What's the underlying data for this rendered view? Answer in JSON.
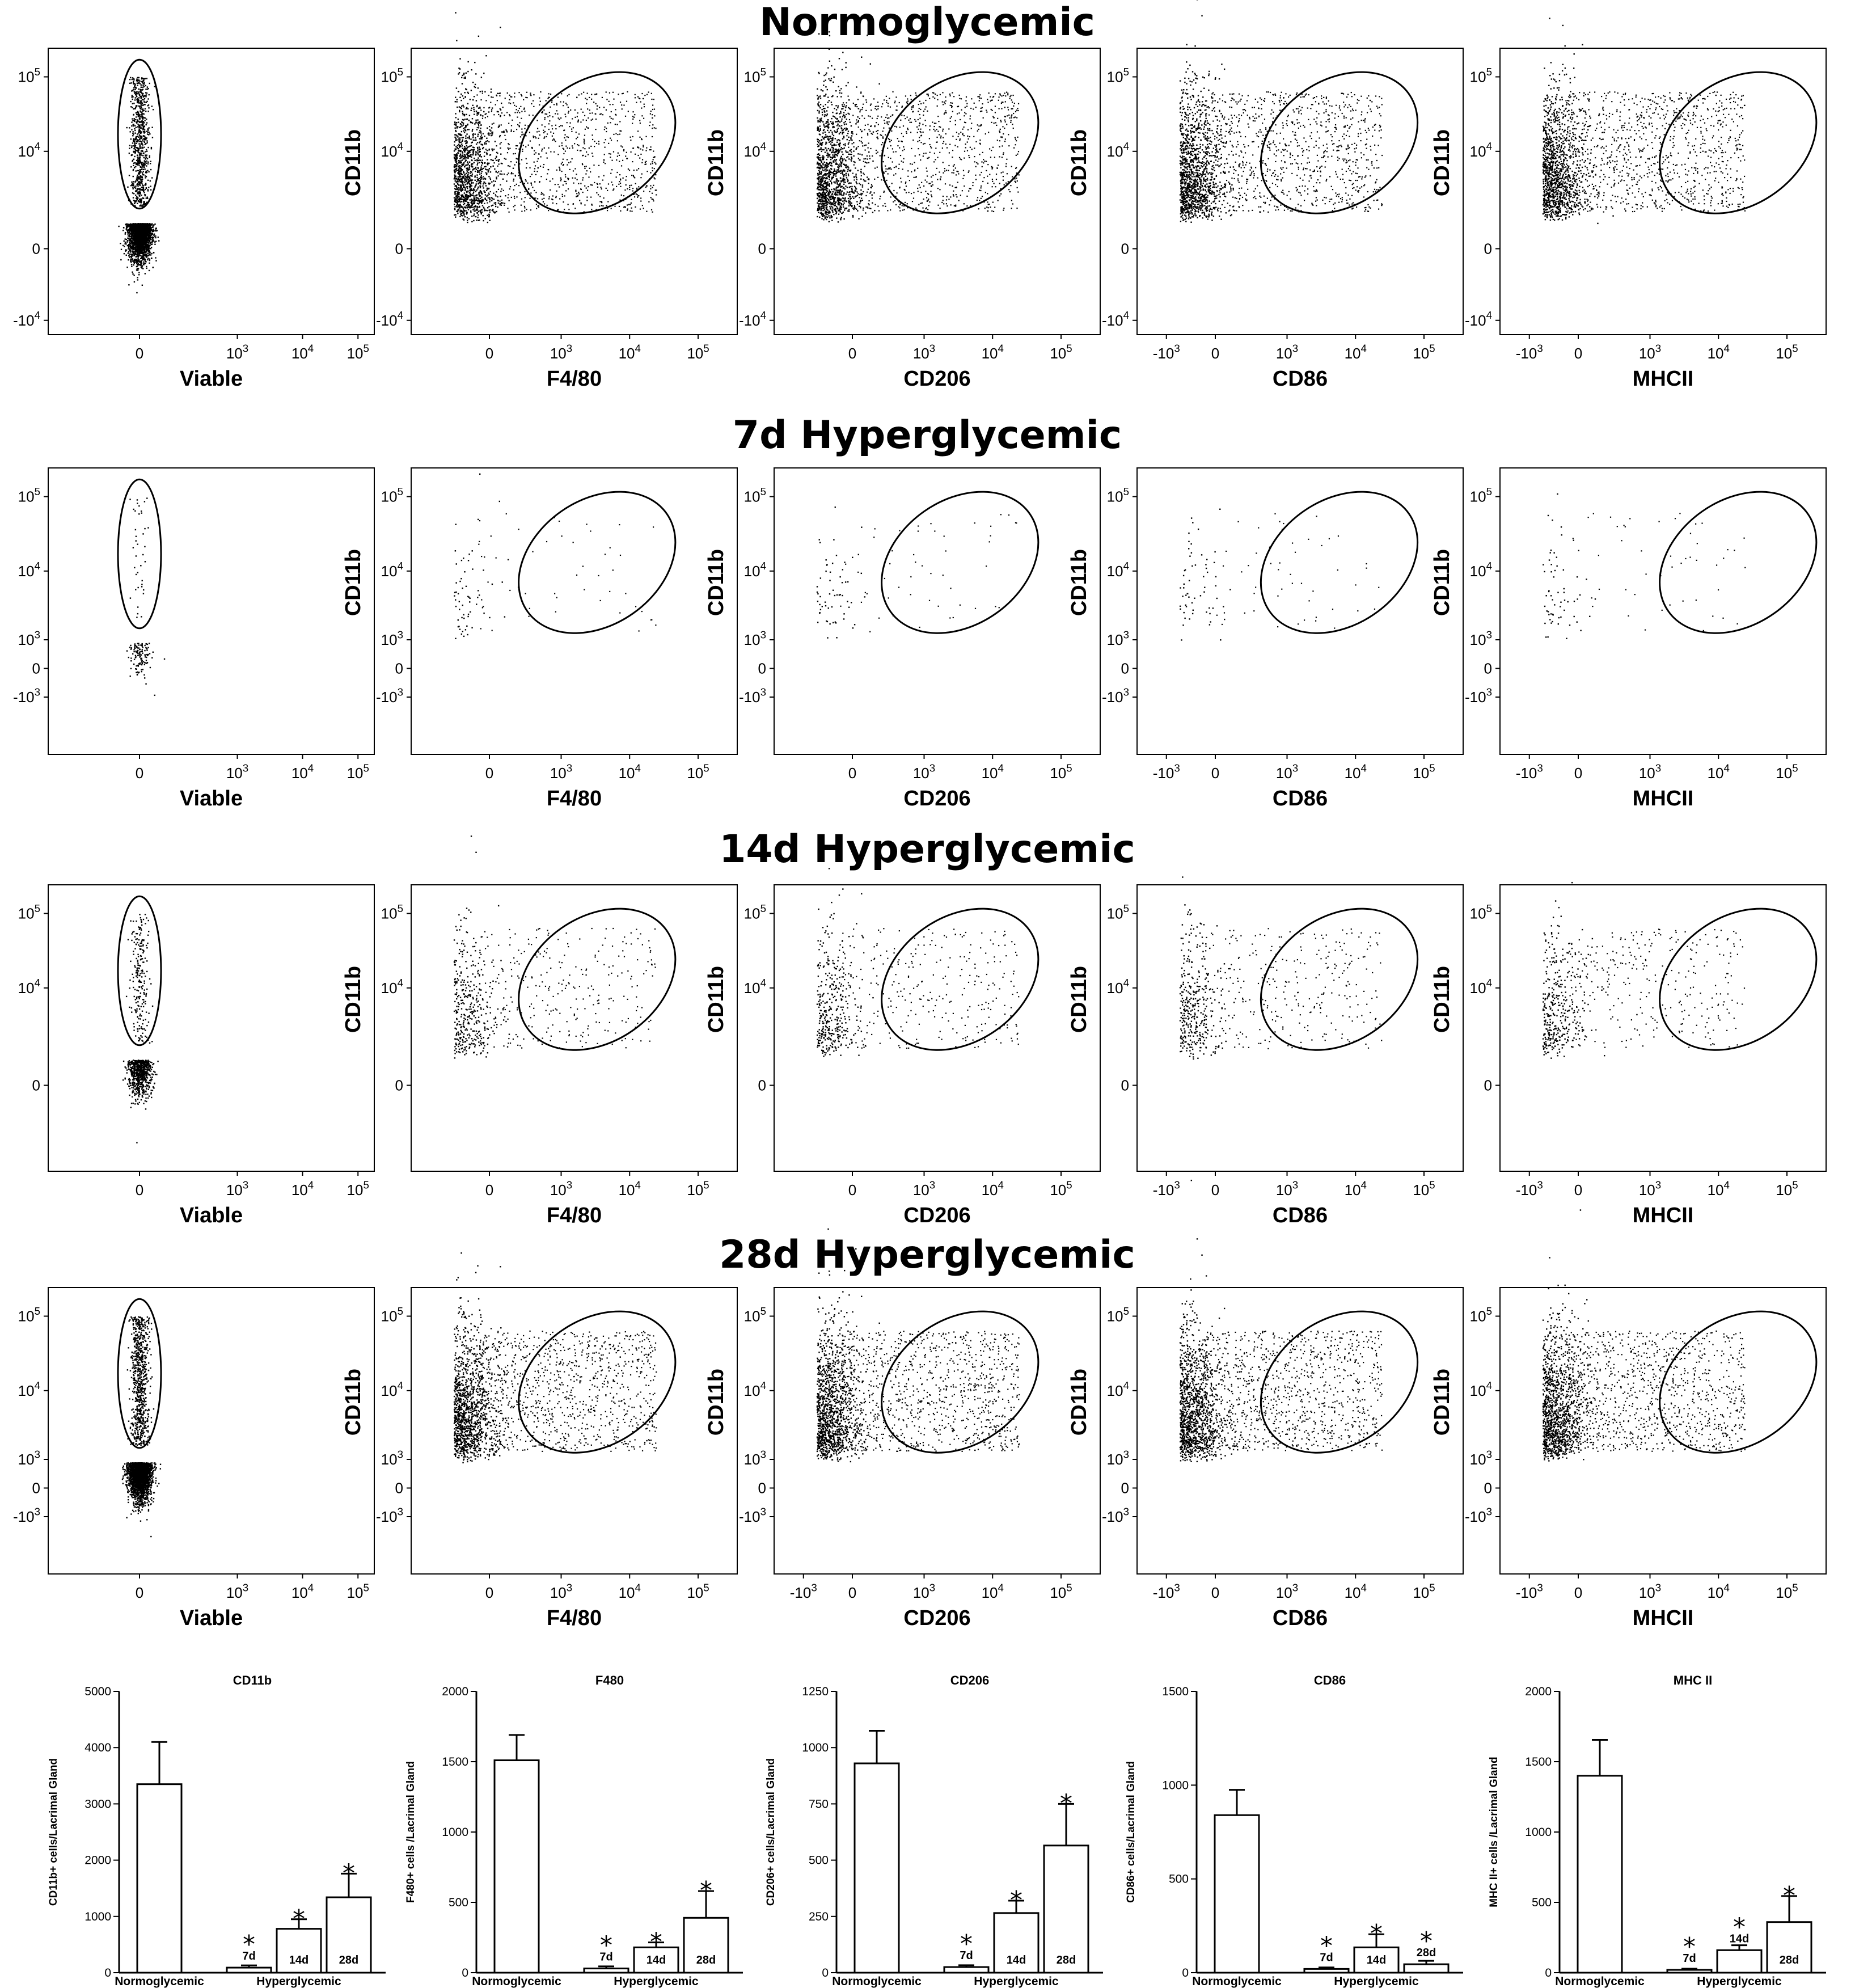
{
  "colors": {
    "ink": "#000000",
    "background": "#ffffff"
  },
  "chart_data": [
    {
      "type": "scatter",
      "panel_group": "flow-cytometry-gating",
      "row_titles": [
        "Normoglycemic",
        "7d Hyperglycemic",
        "14d Hyperglycemic",
        "28d Hyperglycemic"
      ],
      "ylabel": "CD11b",
      "x_labels": [
        "Viable",
        "F4/80",
        "CD206",
        "CD86",
        "MHCII"
      ],
      "scale": "biexponential (log-like)",
      "x_ticks": {
        "Viable": [
          "0",
          "10^3",
          "10^4",
          "10^5"
        ],
        "F4/80": [
          "0",
          "10^3",
          "10^4",
          "10^5"
        ],
        "CD206": [
          "0",
          "10^3",
          "10^4",
          "10^5"
        ],
        "CD86": [
          "-10^3",
          "0",
          "10^3",
          "10^4",
          "10^5"
        ],
        "MHCII": [
          "-10^3",
          "0",
          "10^3",
          "10^4",
          "10^5"
        ]
      },
      "x_ticks_override": {
        "3": {
          "CD206": [
            "-10^3",
            "0",
            "10^3",
            "10^4",
            "10^5"
          ]
        }
      },
      "y_ticks": {
        "0": [
          "-10^4",
          "0",
          "10^4",
          "10^5"
        ],
        "1": [
          "-10^3",
          "0",
          "10^3",
          "10^4",
          "10^5"
        ],
        "2": [
          "0",
          "10^4",
          "10^5"
        ],
        "3": [
          "-10^3",
          "0",
          "10^3",
          "10^4",
          "10^5"
        ]
      },
      "event_density": {
        "Normoglycemic": "dense",
        "7d Hyperglycemic": "sparse",
        "14d Hyperglycemic": "moderate",
        "28d Hyperglycemic": "dense"
      },
      "gate": "ellipse"
    },
    {
      "type": "bar",
      "title": "CD11b",
      "ylabel": "CD11b+ cells/Lacrimal Gland",
      "ylim": [
        0,
        5000
      ],
      "yticks": [
        0,
        1000,
        2000,
        3000,
        4000,
        5000
      ],
      "group_labels": [
        "Normoglycemic",
        "Hyperglycemic"
      ],
      "bar_labels": [
        "",
        "7d",
        "14d",
        "28d"
      ],
      "values": [
        3350,
        90,
        780,
        1340
      ],
      "errors": [
        750,
        40,
        170,
        420
      ],
      "significant": [
        false,
        true,
        true,
        true
      ]
    },
    {
      "type": "bar",
      "title": "F480",
      "ylabel": "F480+ cells /Lacrimal Gland",
      "ylim": [
        0,
        2000
      ],
      "yticks": [
        0,
        500,
        1000,
        1500,
        2000
      ],
      "group_labels": [
        "Normoglycemic",
        "Hyperglycemic"
      ],
      "bar_labels": [
        "",
        "7d",
        "14d",
        "28d"
      ],
      "values": [
        1510,
        30,
        180,
        390
      ],
      "errors": [
        180,
        15,
        35,
        190
      ],
      "significant": [
        false,
        true,
        true,
        true
      ]
    },
    {
      "type": "bar",
      "title": "CD206",
      "ylabel": "CD206+ cells/Lacrimal Gland",
      "ylim": [
        0,
        1250
      ],
      "yticks": [
        0,
        250,
        500,
        750,
        1000,
        1250
      ],
      "group_labels": [
        "Normoglycemic",
        "Hyperglycemic"
      ],
      "bar_labels": [
        "",
        "7d",
        "14d",
        "28d"
      ],
      "values": [
        930,
        25,
        265,
        565
      ],
      "errors": [
        145,
        8,
        55,
        185
      ],
      "significant": [
        false,
        true,
        true,
        true
      ]
    },
    {
      "type": "bar",
      "title": "CD86",
      "ylabel": "CD86+ cells/Lacrimal Gland",
      "ylim": [
        0,
        1500
      ],
      "yticks": [
        0,
        500,
        1000,
        1500
      ],
      "group_labels": [
        "Normoglycemic",
        "Hyperglycemic"
      ],
      "bar_labels": [
        "",
        "7d",
        "14d",
        "28d"
      ],
      "values": [
        840,
        20,
        135,
        45
      ],
      "errors": [
        135,
        8,
        70,
        18
      ],
      "significant": [
        false,
        true,
        true,
        true
      ]
    },
    {
      "type": "bar",
      "title": "MHC II",
      "ylabel": "MHC II+ cells /Lacrimal Gland",
      "ylim": [
        0,
        2000
      ],
      "yticks": [
        0,
        500,
        1000,
        1500,
        2000
      ],
      "group_labels": [
        "Normoglycemic",
        "Hyperglycemic"
      ],
      "bar_labels": [
        "",
        "7d",
        "14d",
        "28d"
      ],
      "values": [
        1400,
        20,
        160,
        360
      ],
      "errors": [
        255,
        8,
        35,
        185
      ],
      "significant": [
        false,
        true,
        true,
        true
      ]
    }
  ]
}
